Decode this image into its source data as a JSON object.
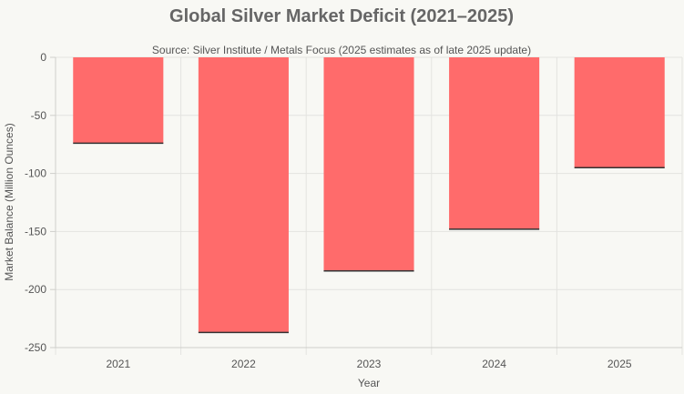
{
  "chart_data": {
    "type": "bar",
    "title": "Global Silver Market Deficit (2021–2025)",
    "subtitle": "Source: Silver Institute / Metals Focus (2025 estimates as of late 2025 update)",
    "xlabel": "Year",
    "ylabel": "Market Balance (Million Ounces)",
    "categories": [
      "2021",
      "2022",
      "2023",
      "2024",
      "2025"
    ],
    "values": [
      -74,
      -237,
      -184,
      -148,
      -95
    ],
    "ylim": [
      -250,
      0
    ],
    "yticks": [
      0,
      -50,
      -100,
      -150,
      -200,
      -250
    ],
    "ytick_labels": [
      "0",
      "-50",
      "-100",
      "-150",
      "-200",
      "-250"
    ],
    "grid": true,
    "bar_color": "#ff6b6b",
    "bar_edge_color": "#333333"
  }
}
